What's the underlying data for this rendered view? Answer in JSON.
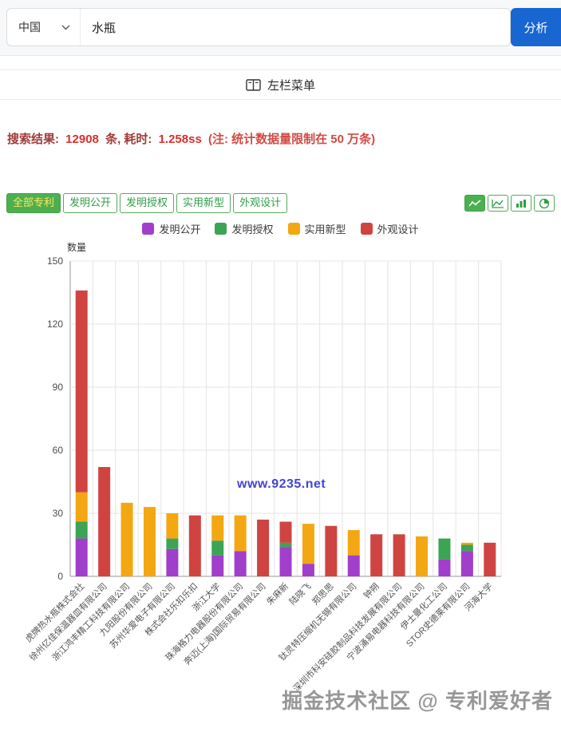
{
  "search": {
    "country": "中国",
    "query": "水瓶",
    "analyze_label": "分析"
  },
  "menu": {
    "label": "左栏菜单"
  },
  "results": {
    "label": "搜索结果:",
    "count": "12908",
    "middle": "条, 耗时:",
    "time": "1.258ss",
    "note": "(注: 统计数据量限制在 50 万条)"
  },
  "tabs": [
    {
      "label": "全部专利",
      "active": true
    },
    {
      "label": "发明公开",
      "active": false
    },
    {
      "label": "发明授权",
      "active": false
    },
    {
      "label": "实用新型",
      "active": false
    },
    {
      "label": "外观设计",
      "active": false
    }
  ],
  "chart_buttons": [
    "trend-chart",
    "line-chart",
    "bar-chart",
    "pie-chart"
  ],
  "watermarks": {
    "chart": "www.9235.net",
    "footer": "掘金技术社区 @ 专利爱好者"
  },
  "colors": {
    "analyze_blue": "#1766d1",
    "tab_green": "#4caf50",
    "result_dark_red": "#a03b38",
    "result_red": "#d9302c",
    "watermark_blue": "#4444d4"
  },
  "chart_data": {
    "type": "bar",
    "stacked": true,
    "title": "",
    "xlabel": "",
    "ylabel": "数量",
    "ylim": [
      0,
      150
    ],
    "yticks": [
      0,
      30,
      60,
      90,
      120,
      150
    ],
    "grid": true,
    "legend_position": "top-center",
    "categories": [
      "虎牌热水瓶株式会社",
      "徐州亿佳保温器皿有限公司",
      "浙江鸿丰精工科技有限公司",
      "九阳股份有限公司",
      "苏州华爱电子有限公司",
      "株式会社乐扣乐扣",
      "浙江大学",
      "珠海格力电器股份有限公司",
      "奔迈(上海)国际贸易有限公司",
      "朱麻新",
      "陆晓飞",
      "郑思思",
      "钛灵特压缩机无锡有限公司",
      "钟朔",
      "深圳市科安硅胶制品科技发展有限公司",
      "宁波涌易电器科技有限公司",
      "伊士曼化工公司",
      "STOR史德莱有限公司",
      "河海大学"
    ],
    "series": [
      {
        "name": "发明公开",
        "color": "#a13ecb",
        "values": [
          18,
          0,
          0,
          0,
          13,
          0,
          10,
          12,
          0,
          14,
          6,
          0,
          10,
          0,
          0,
          0,
          8,
          12,
          0
        ]
      },
      {
        "name": "发明授权",
        "color": "#3ca454",
        "values": [
          8,
          0,
          0,
          0,
          5,
          0,
          7,
          0,
          0,
          2,
          0,
          0,
          0,
          0,
          0,
          0,
          10,
          3,
          0
        ]
      },
      {
        "name": "实用新型",
        "color": "#f3a712",
        "values": [
          14,
          0,
          35,
          33,
          12,
          0,
          12,
          17,
          0,
          0,
          19,
          0,
          12,
          0,
          0,
          19,
          0,
          1,
          0
        ]
      },
      {
        "name": "外观设计",
        "color": "#cf4441",
        "values": [
          96,
          52,
          0,
          0,
          0,
          29,
          0,
          0,
          27,
          10,
          0,
          24,
          0,
          20,
          20,
          0,
          0,
          0,
          16
        ]
      }
    ],
    "totals": [
      136,
      52,
      35,
      33,
      30,
      29,
      29,
      29,
      27,
      26,
      25,
      24,
      22,
      20,
      20,
      19,
      18,
      16,
      16
    ]
  }
}
